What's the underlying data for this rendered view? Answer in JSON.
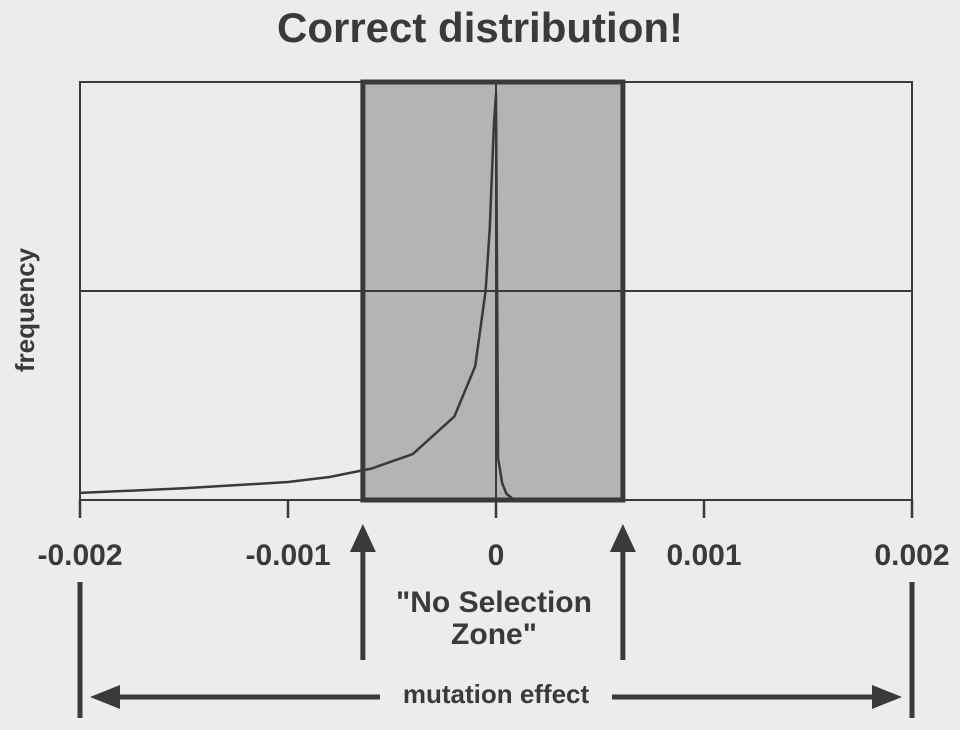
{
  "chart_data": {
    "type": "line",
    "title": "Correct distribution!",
    "xlabel": "mutation effect",
    "ylabel": "frequency",
    "xlim": [
      -0.002,
      0.002
    ],
    "ylim": [
      0,
      1
    ],
    "x_ticks": [
      -0.002,
      -0.001,
      0,
      0.001,
      0.002
    ],
    "x_tick_labels": [
      "-0.002",
      "-0.001",
      "0",
      "0.001",
      "0.002"
    ],
    "grid": true,
    "highlight_region": {
      "label_line1": "\"No Selection",
      "label_line2": "Zone\"",
      "x_range": [
        -0.00064,
        0.00061
      ]
    },
    "series": [
      {
        "x": [
          -0.002,
          -0.0015,
          -0.001,
          -0.0008,
          -0.0006,
          -0.0004,
          -0.0002,
          -0.0001,
          -5e-05,
          -3e-05,
          -1e-05,
          0,
          1e-05,
          3e-05,
          5e-05,
          8e-05
        ],
        "y": [
          0.017,
          0.028,
          0.043,
          0.055,
          0.075,
          0.11,
          0.2,
          0.32,
          0.5,
          0.65,
          0.9,
          0.97,
          0.1,
          0.04,
          0.015,
          0.003
        ]
      }
    ],
    "colors": {
      "background": "#ececea",
      "zone": "#b4b4b2",
      "ink": "#3a3a3a"
    }
  }
}
